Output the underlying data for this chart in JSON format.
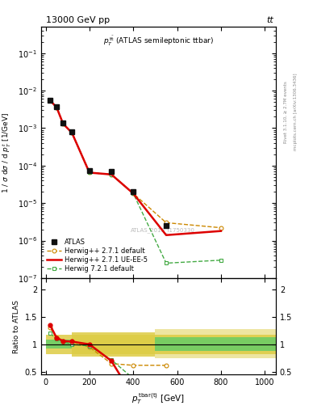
{
  "title_left": "13000 GeV pp",
  "title_right": "tt",
  "watermark": "ATLAS_2019_I1750330",
  "right_label": "Rivet 3.1.10, ≥ 2.7M events",
  "right_label2": "mcplots.cern.ch [arXiv:1306.3436]",
  "atlas_x": [
    20,
    50,
    80,
    120,
    200,
    300,
    400,
    550,
    800
  ],
  "atlas_y": [
    0.0055,
    0.0038,
    0.00135,
    0.0008,
    7.5e-05,
    7e-05,
    2e-05,
    2.5e-06,
    0
  ],
  "herwig271_x": [
    20,
    50,
    80,
    120,
    200,
    300,
    400,
    550,
    800
  ],
  "herwig271_y": [
    0.0055,
    0.0036,
    0.0013,
    0.00075,
    6.5e-05,
    5.8e-05,
    1.8e-05,
    3e-06,
    2.2e-06
  ],
  "herwig271ue_x": [
    20,
    50,
    80,
    120,
    200,
    300,
    400,
    550,
    800
  ],
  "herwig271ue_y": [
    0.0055,
    0.0036,
    0.0013,
    0.00075,
    6.5e-05,
    5.8e-05,
    1.8e-05,
    1.4e-06,
    1.8e-06
  ],
  "herwig721_x": [
    20,
    50,
    80,
    120,
    200,
    300,
    400,
    550,
    800
  ],
  "herwig721_y": [
    0.0055,
    0.0036,
    0.0013,
    0.00075,
    6.5e-05,
    5.8e-05,
    1.8e-05,
    2.5e-07,
    3e-07
  ],
  "ratio_herwig271_x": [
    20,
    50,
    80,
    120,
    200,
    300,
    400,
    550
  ],
  "ratio_herwig271_y": [
    1.3,
    1.12,
    1.06,
    1.05,
    0.95,
    0.65,
    0.62,
    0.62
  ],
  "ratio_herwig271ue_x": [
    20,
    50,
    80,
    120,
    200,
    300,
    400,
    550
  ],
  "ratio_herwig271ue_y": [
    1.35,
    1.12,
    1.06,
    1.05,
    1.0,
    0.7,
    0.05,
    0.05
  ],
  "ratio_herwig721_x": [
    20,
    50,
    80,
    120,
    200,
    300,
    400,
    550
  ],
  "ratio_herwig721_y": [
    1.2,
    1.1,
    1.05,
    1.0,
    0.97,
    0.72,
    0.38,
    0.42
  ],
  "color_atlas": "#111111",
  "color_herwig271": "#cc8800",
  "color_herwig271ue": "#dd0000",
  "color_herwig721": "#44aa44",
  "color_band_green": "#66cc66",
  "color_band_yellow": "#ddcc44",
  "ylim_main": [
    1e-07,
    0.5
  ],
  "ylim_ratio": [
    0.45,
    2.2
  ],
  "xlim": [
    -20,
    1050
  ]
}
